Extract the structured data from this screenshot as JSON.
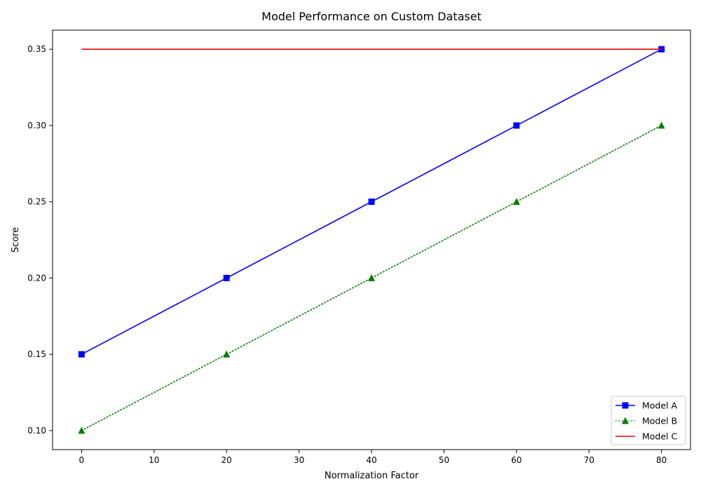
{
  "chart_data": {
    "type": "line",
    "title": "Model Performance on Custom Dataset",
    "xlabel": "Normalization Factor",
    "ylabel": "Score",
    "x": [
      0,
      20,
      40,
      60,
      80
    ],
    "xlim": [
      -4,
      84
    ],
    "ylim": [
      0.0875,
      0.3625
    ],
    "xticks": [
      0,
      10,
      20,
      30,
      40,
      50,
      60,
      70,
      80
    ],
    "yticks": [
      0.1,
      0.15,
      0.2,
      0.25,
      0.3,
      0.35
    ],
    "xtick_labels": [
      "0",
      "10",
      "20",
      "30",
      "40",
      "50",
      "60",
      "70",
      "80"
    ],
    "ytick_labels": [
      "0.10",
      "0.15",
      "0.20",
      "0.25",
      "0.30",
      "0.35"
    ],
    "grid": false,
    "legend_position": "lower-right",
    "series": [
      {
        "name": "Model A",
        "values": [
          0.15,
          0.2,
          0.25,
          0.3,
          0.35
        ],
        "color": "#0000ff",
        "line_style": "solid",
        "marker": "square"
      },
      {
        "name": "Model B",
        "values": [
          0.1,
          0.15,
          0.2,
          0.25,
          0.3
        ],
        "color": "#008000",
        "line_style": "dotted",
        "marker": "triangle"
      },
      {
        "name": "Model C",
        "values": [
          0.35,
          0.35,
          0.35,
          0.35,
          0.35
        ],
        "color": "#ff0000",
        "line_style": "solid",
        "marker": "none"
      }
    ]
  }
}
